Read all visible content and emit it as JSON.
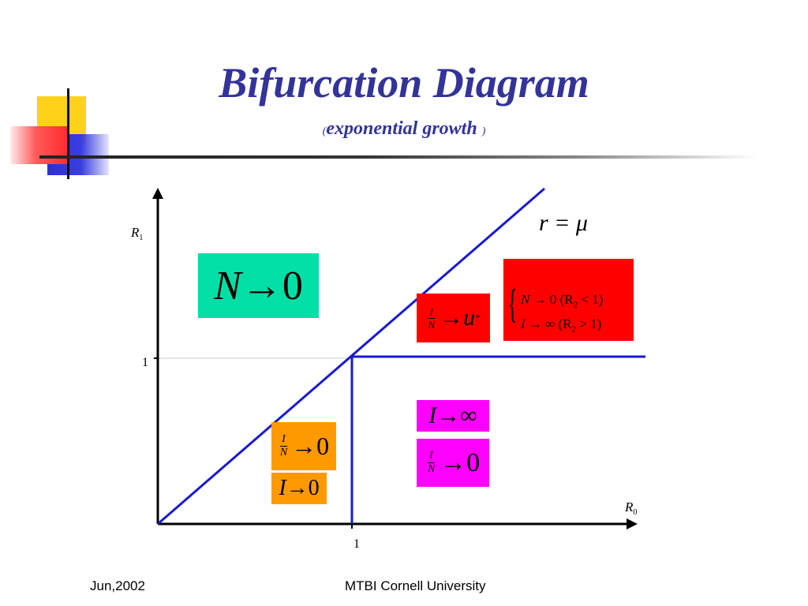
{
  "title": "Bifurcation Diagram",
  "subtitle": {
    "open_paren": "(",
    "text": "exponential growth",
    "close_paren": ")"
  },
  "axes": {
    "y_label": "R",
    "y_label_sub": "1",
    "x_label": "R",
    "x_label_sub": "0",
    "y_tick": "1",
    "x_tick": "1"
  },
  "line_label": "r = μ",
  "regions": {
    "top_left": {
      "lhs": "N",
      "arrow": "→",
      "rhs": "0"
    },
    "middle_red": {
      "num": "I",
      "den": "N",
      "arrow": "→",
      "rhs": "u",
      "sup": "*"
    },
    "right_red": {
      "row1": {
        "lhs": "N",
        "arrow": "→",
        "rhs": "0",
        "cond": "(R",
        "cond_sub": "2",
        "cond_rel": " < 1)"
      },
      "row2": {
        "lhs": "I",
        "arrow": "→",
        "rhs": "∞",
        "cond": "(R",
        "cond_sub": "2",
        "cond_rel": " > 1)"
      }
    },
    "magenta_top": {
      "lhs": "I",
      "arrow": "→",
      "rhs": "∞"
    },
    "magenta_bottom": {
      "num": "I",
      "den": "N",
      "arrow": "→",
      "rhs": "0"
    },
    "orange_top": {
      "num": "I",
      "den": "N",
      "arrow": "→",
      "rhs": "0"
    },
    "orange_bottom": {
      "lhs": "I",
      "arrow": "→",
      "rhs": "0"
    }
  },
  "footer": {
    "date": "Jun,2002",
    "organization": "MTBI Cornell University"
  },
  "colors": {
    "title": "#33339a",
    "line": "#1a1acc",
    "box_teal": "#00dfa6",
    "box_red": "#ff0000",
    "box_magenta": "#ff00ff",
    "box_orange": "#ff9900"
  }
}
